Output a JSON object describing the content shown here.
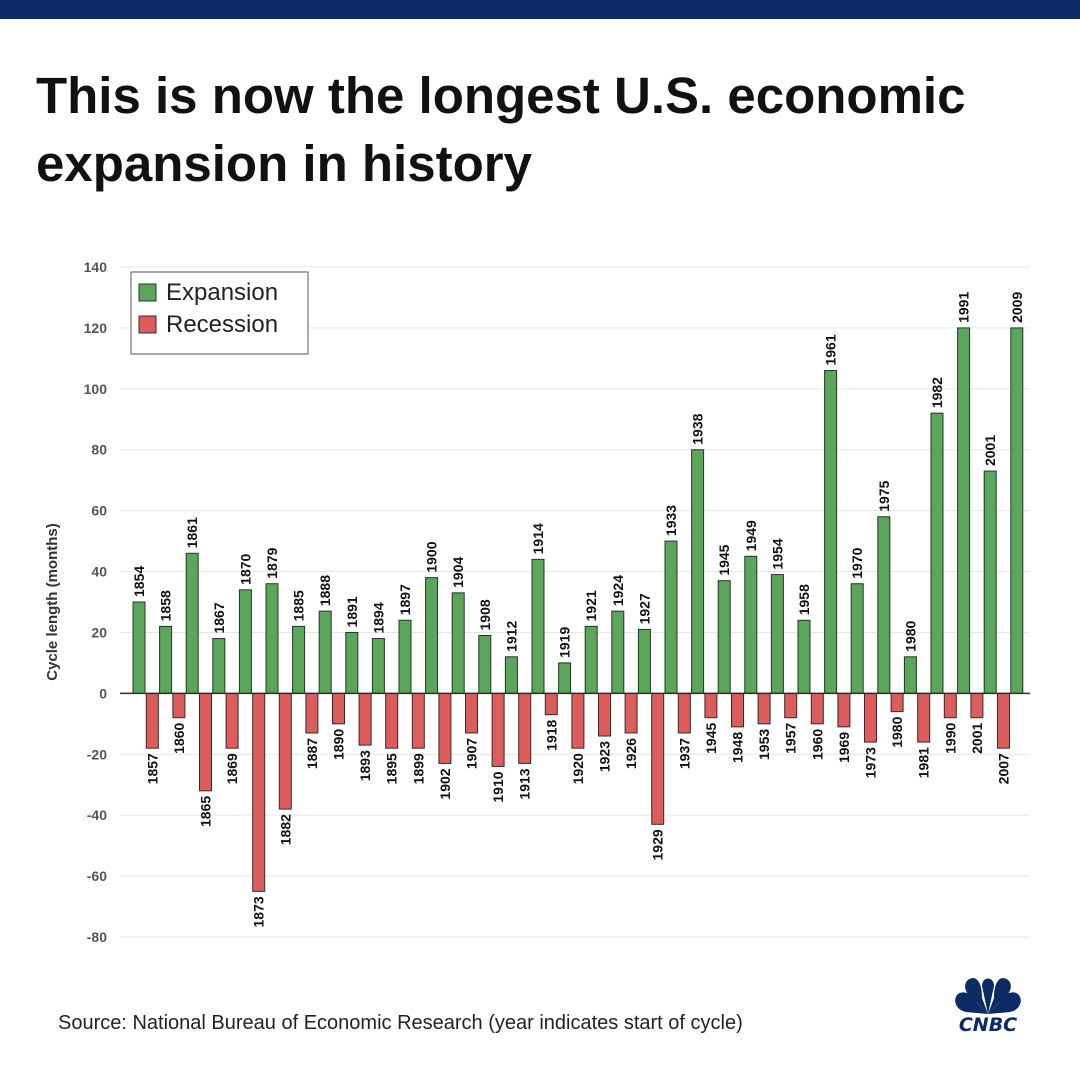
{
  "header": {
    "title": "This is now the longest U.S. economic expansion in history"
  },
  "footer": {
    "source": "Source: National Bureau of Economic Research (year indicates start of cycle)",
    "brand": "CNBC"
  },
  "colors": {
    "top_bar": "#0c2a63",
    "expansion": "#5aa65a",
    "recession": "#dd5c5c",
    "brand": "#0c2a63"
  },
  "chart_data": {
    "type": "bar",
    "title": "",
    "xlabel": "",
    "ylabel": "Cycle length (months)",
    "ylim": [
      -80,
      140
    ],
    "yticks": [
      140,
      120,
      100,
      80,
      60,
      40,
      20,
      0,
      -20,
      -40,
      -60,
      -80
    ],
    "grid": true,
    "legend_position": "top-left",
    "series": [
      {
        "name": "Expansion",
        "color": "#5aa65a"
      },
      {
        "name": "Recession",
        "color": "#dd5c5c"
      }
    ],
    "cycles": [
      {
        "expansion_year": "1854",
        "expansion": 30,
        "recession_year": "1857",
        "recession": -18
      },
      {
        "expansion_year": "1858",
        "expansion": 22,
        "recession_year": "1860",
        "recession": -8
      },
      {
        "expansion_year": "1861",
        "expansion": 46,
        "recession_year": "1865",
        "recession": -32
      },
      {
        "expansion_year": "1867",
        "expansion": 18,
        "recession_year": "1869",
        "recession": -18
      },
      {
        "expansion_year": "1870",
        "expansion": 34,
        "recession_year": "1873",
        "recession": -65
      },
      {
        "expansion_year": "1879",
        "expansion": 36,
        "recession_year": "1882",
        "recession": -38
      },
      {
        "expansion_year": "1885",
        "expansion": 22,
        "recession_year": "1887",
        "recession": -13
      },
      {
        "expansion_year": "1888",
        "expansion": 27,
        "recession_year": "1890",
        "recession": -10
      },
      {
        "expansion_year": "1891",
        "expansion": 20,
        "recession_year": "1893",
        "recession": -17
      },
      {
        "expansion_year": "1894",
        "expansion": 18,
        "recession_year": "1895",
        "recession": -18
      },
      {
        "expansion_year": "1897",
        "expansion": 24,
        "recession_year": "1899",
        "recession": -18
      },
      {
        "expansion_year": "1900",
        "expansion": 38,
        "recession_year": "1902",
        "recession": -23
      },
      {
        "expansion_year": "1904",
        "expansion": 33,
        "recession_year": "1907",
        "recession": -13
      },
      {
        "expansion_year": "1908",
        "expansion": 19,
        "recession_year": "1910",
        "recession": -24
      },
      {
        "expansion_year": "1912",
        "expansion": 12,
        "recession_year": "1913",
        "recession": -23
      },
      {
        "expansion_year": "1914",
        "expansion": 44,
        "recession_year": "1918",
        "recession": -7
      },
      {
        "expansion_year": "1919",
        "expansion": 10,
        "recession_year": "1920",
        "recession": -18
      },
      {
        "expansion_year": "1921",
        "expansion": 22,
        "recession_year": "1923",
        "recession": -14
      },
      {
        "expansion_year": "1924",
        "expansion": 27,
        "recession_year": "1926",
        "recession": -13
      },
      {
        "expansion_year": "1927",
        "expansion": 21,
        "recession_year": "1929",
        "recession": -43
      },
      {
        "expansion_year": "1933",
        "expansion": 50,
        "recession_year": "1937",
        "recession": -13
      },
      {
        "expansion_year": "1938",
        "expansion": 80,
        "recession_year": "1945",
        "recession": -8
      },
      {
        "expansion_year": "1945",
        "expansion": 37,
        "recession_year": "1948",
        "recession": -11
      },
      {
        "expansion_year": "1949",
        "expansion": 45,
        "recession_year": "1953",
        "recession": -10
      },
      {
        "expansion_year": "1954",
        "expansion": 39,
        "recession_year": "1957",
        "recession": -8
      },
      {
        "expansion_year": "1958",
        "expansion": 24,
        "recession_year": "1960",
        "recession": -10
      },
      {
        "expansion_year": "1961",
        "expansion": 106,
        "recession_year": "1969",
        "recession": -11
      },
      {
        "expansion_year": "1970",
        "expansion": 36,
        "recession_year": "1973",
        "recession": -16
      },
      {
        "expansion_year": "1975",
        "expansion": 58,
        "recession_year": "1980",
        "recession": -6
      },
      {
        "expansion_year": "1980",
        "expansion": 12,
        "recession_year": "1981",
        "recession": -16
      },
      {
        "expansion_year": "1982",
        "expansion": 92,
        "recession_year": "1990",
        "recession": -8
      },
      {
        "expansion_year": "1991",
        "expansion": 120,
        "recession_year": "2001",
        "recession": -8
      },
      {
        "expansion_year": "2001",
        "expansion": 73,
        "recession_year": "2007",
        "recession": -18
      },
      {
        "expansion_year": "2009",
        "expansion": 120,
        "recession_year": null,
        "recession": null
      }
    ]
  }
}
